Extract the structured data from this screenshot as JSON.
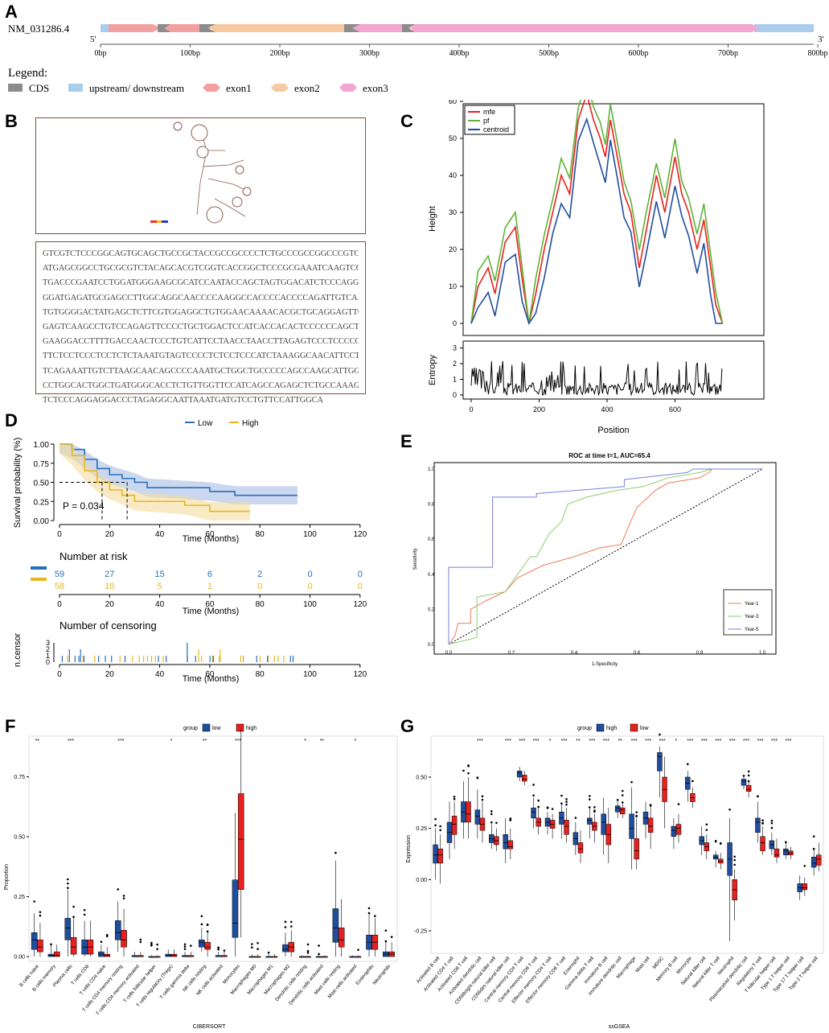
{
  "panels": {
    "A": "A",
    "B": "B",
    "C": "C",
    "D": "D",
    "E": "E",
    "F": "F",
    "G": "G"
  },
  "panelA": {
    "transcript": "NM_031286.4",
    "five_prime": "5'",
    "three_prime": "3'",
    "ticks": [
      "0bp",
      "100bp",
      "200bp",
      "300bp",
      "400bp",
      "500bp",
      "600bp",
      "700bp",
      "800bp"
    ],
    "legend_title": "Legend:",
    "legend": [
      {
        "label": "CDS",
        "color": "#8c8c8c"
      },
      {
        "label": "upstream/ downstream",
        "color": "#a9cdea"
      },
      {
        "label": "exon1",
        "color": "#f3a0a0"
      },
      {
        "label": "exon2",
        "color": "#f6c9a0"
      },
      {
        "label": "exon3",
        "color": "#f3a6cf"
      }
    ]
  },
  "panelB": {
    "sequence_lines": [
      "GTCGTCTCCCGGCAGTGCAGCTGCCGCTACCGCCGCCCCTCTGCCCGCCGGCCCGTCTGTCTACCCCCAGC",
      "ATGAGCGGCCTGCGCGTCTACAGCACGTCGGTCACCGGCTCCCGCGAAATCAAGTCCCAGCAGAGCGAGG",
      "TGACCCGAATCCTGGATGGGAAGCGCATCCAATACCAGCTAGTGGACATCTCCCAGGACAACGCCCTGAG",
      "GGATGAGATGCGAGCCTTGGCAGGCAACCCCAAGGCCACCCCACCCCAGATTGTCAACGGGGACCAGTAC",
      "TGTGGGGACTATGAGCTCTTCGTGGAGGCTGTGGAACAAAACACGCTGCAGGAGTTCCTGAAGCTGGCTT",
      "GAGTCAAGCCTGTCCAGAGTTCCCCTGCTGGACTCCATCACCACACTCCCCCCAGCTTCACCTGGCCAT",
      "GAAGGACCTTTTGACCAACTCCCTGTCATTCCTAACCTAACCTTAGAGTCCCTCCCCCAATGCAGGCCAC",
      "TTCTCCTCCCTCCTCTCTAAATGTAGTCCCCTCTCCTCCCATCTAAAGGCAACATTCCTTACCCATTAGTC",
      "TCAGAAATTGTCTTAAGCAACAGCCCCAAATGCTGGCTGCCCCCAGCCAAGCATTGGGGCCGCCATCCTG",
      "CCTGGCACTGGCTGATGGGCACCTCTGTTGGTTCCATCAGCCAGAGCTCTGCCAAAGGCCCCCGCAGTCCC",
      "TCTCCCAGGAGGACCCTAGAGGCAATTAAATGATGTCCTGTTCCATTGGCA"
    ]
  },
  "panelC": {
    "legend": [
      {
        "label": "mfe",
        "color": "#e8211e"
      },
      {
        "label": "pf",
        "color": "#5fb336"
      },
      {
        "label": "centroid",
        "color": "#1f4e9e"
      }
    ],
    "ylabel_top": "Height",
    "ylabel_bottom": "Entropy",
    "xlabel": "Position",
    "yticks_top": [
      "0",
      "10",
      "20",
      "30",
      "40",
      "50",
      "60"
    ],
    "yticks_bottom": [
      "0",
      "1",
      "2",
      "3"
    ],
    "xticks": [
      "0",
      "200",
      "400",
      "600"
    ]
  },
  "panelD": {
    "legend": [
      {
        "label": "Low",
        "color": "#2771b8"
      },
      {
        "label": "High",
        "color": "#e8b71e"
      }
    ],
    "ylabel": "Survival probability (%)",
    "yticks": [
      "0.00",
      "0.25",
      "0.50",
      "0.75",
      "1.00"
    ],
    "xlabel": "Time (Months)",
    "xticks": [
      "0",
      "20",
      "40",
      "60",
      "80",
      "100",
      "120"
    ],
    "pvalue": "P = 0.034",
    "risk_title": "Number at risk",
    "risk_low": [
      "59",
      "27",
      "15",
      "6",
      "2",
      "0",
      "0"
    ],
    "risk_high": [
      "58",
      "18",
      "5",
      "1",
      "0",
      "0",
      "0"
    ],
    "censor_title": "Number of censoring",
    "censor_ylabel": "n.censor",
    "censor_yticks": [
      "0",
      "1",
      "2",
      "3"
    ]
  },
  "panelE": {
    "title": "ROC at time t=1, AUC=65.4",
    "xlabel": "1-Specificity",
    "ylabel": "Sensitivity",
    "ticks": [
      "0.0",
      "0.2",
      "0.4",
      "0.6",
      "0.8",
      "1.0"
    ],
    "legend": [
      {
        "label": "Year-1",
        "color": "#f07a5a"
      },
      {
        "label": "Year-3",
        "color": "#8ccf6a"
      },
      {
        "label": "Year-5",
        "color": "#7b7fe0"
      }
    ]
  },
  "panelF": {
    "group_label": "group",
    "legend": [
      {
        "label": "low",
        "color": "#1f4e9e"
      },
      {
        "label": "high",
        "color": "#e8211e"
      }
    ],
    "ylabel": "Proportion",
    "xlabel": "CIBERSORT",
    "yticks": [
      "0.00",
      "0.25",
      "0.50",
      "0.75"
    ],
    "categories": [
      "B cells naive",
      "B cells memory",
      "Plasma cells",
      "T cells CD8",
      "T cells CD4 naive",
      "T cells CD4 memory resting",
      "T cells CD4 memory activated",
      "T cells follicular helper",
      "T cells regulatory (Tregs)",
      "T cells gamma delta",
      "NK cells resting",
      "NK cells activated",
      "Monocytes",
      "Macrophages M0",
      "Macrophages M1",
      "Macrophages M2",
      "Dendritic cells resting",
      "Dendritic cells activated",
      "Mast cells resting",
      "Mast cells activated",
      "Eosinophils",
      "Neutrophils"
    ],
    "sig": [
      "**",
      "",
      "***",
      "",
      "",
      "***",
      "",
      "",
      "*",
      "",
      "**",
      "",
      "***",
      "",
      "",
      "",
      "*",
      "**",
      "",
      "*",
      "",
      ""
    ]
  },
  "panelG": {
    "group_label": "group",
    "legend": [
      {
        "label": "high",
        "color": "#1f4e9e"
      },
      {
        "label": "low",
        "color": "#e8211e"
      }
    ],
    "ylabel": "Expression",
    "xlabel": "ssGSEA",
    "yticks": [
      "-0.25",
      "0.00",
      "0.25",
      "0.50"
    ],
    "categories": [
      "Activated B cell",
      "Activated CD4 T cell",
      "Activated CD8 T cell",
      "Activated dendritic cell",
      "CD56bright natural killer cell",
      "CD56dim natural killer cell",
      "Central memory CD4 T cell",
      "Central memory CD8 T cell",
      "Effector memory CD4 T cell",
      "Effector memory CD8 T cell",
      "Eosinophil",
      "Gamma delta T cell",
      "Immature B cell",
      "Immature dendritic cell",
      "Macrophage",
      "Mast cell",
      "MDSC",
      "Memory B cell",
      "Monocyte",
      "Natural killer cell",
      "Natural killer T cell",
      "Neutrophil",
      "Plasmacytoid dendritic cell",
      "Regulatory T cell",
      "T follicular helper cell",
      "Type 1 T helper cell",
      "Type 17 T helper cell",
      "Type 2 T helper cell"
    ],
    "sig": [
      "",
      "",
      "",
      "***",
      "",
      "***",
      "***",
      "***",
      "*",
      "***",
      "**",
      "***",
      "***",
      "**",
      "***",
      "***",
      "***",
      "*",
      "***",
      "***",
      "***",
      "***",
      "***",
      "***",
      "***",
      "***",
      "",
      ""
    ]
  }
}
